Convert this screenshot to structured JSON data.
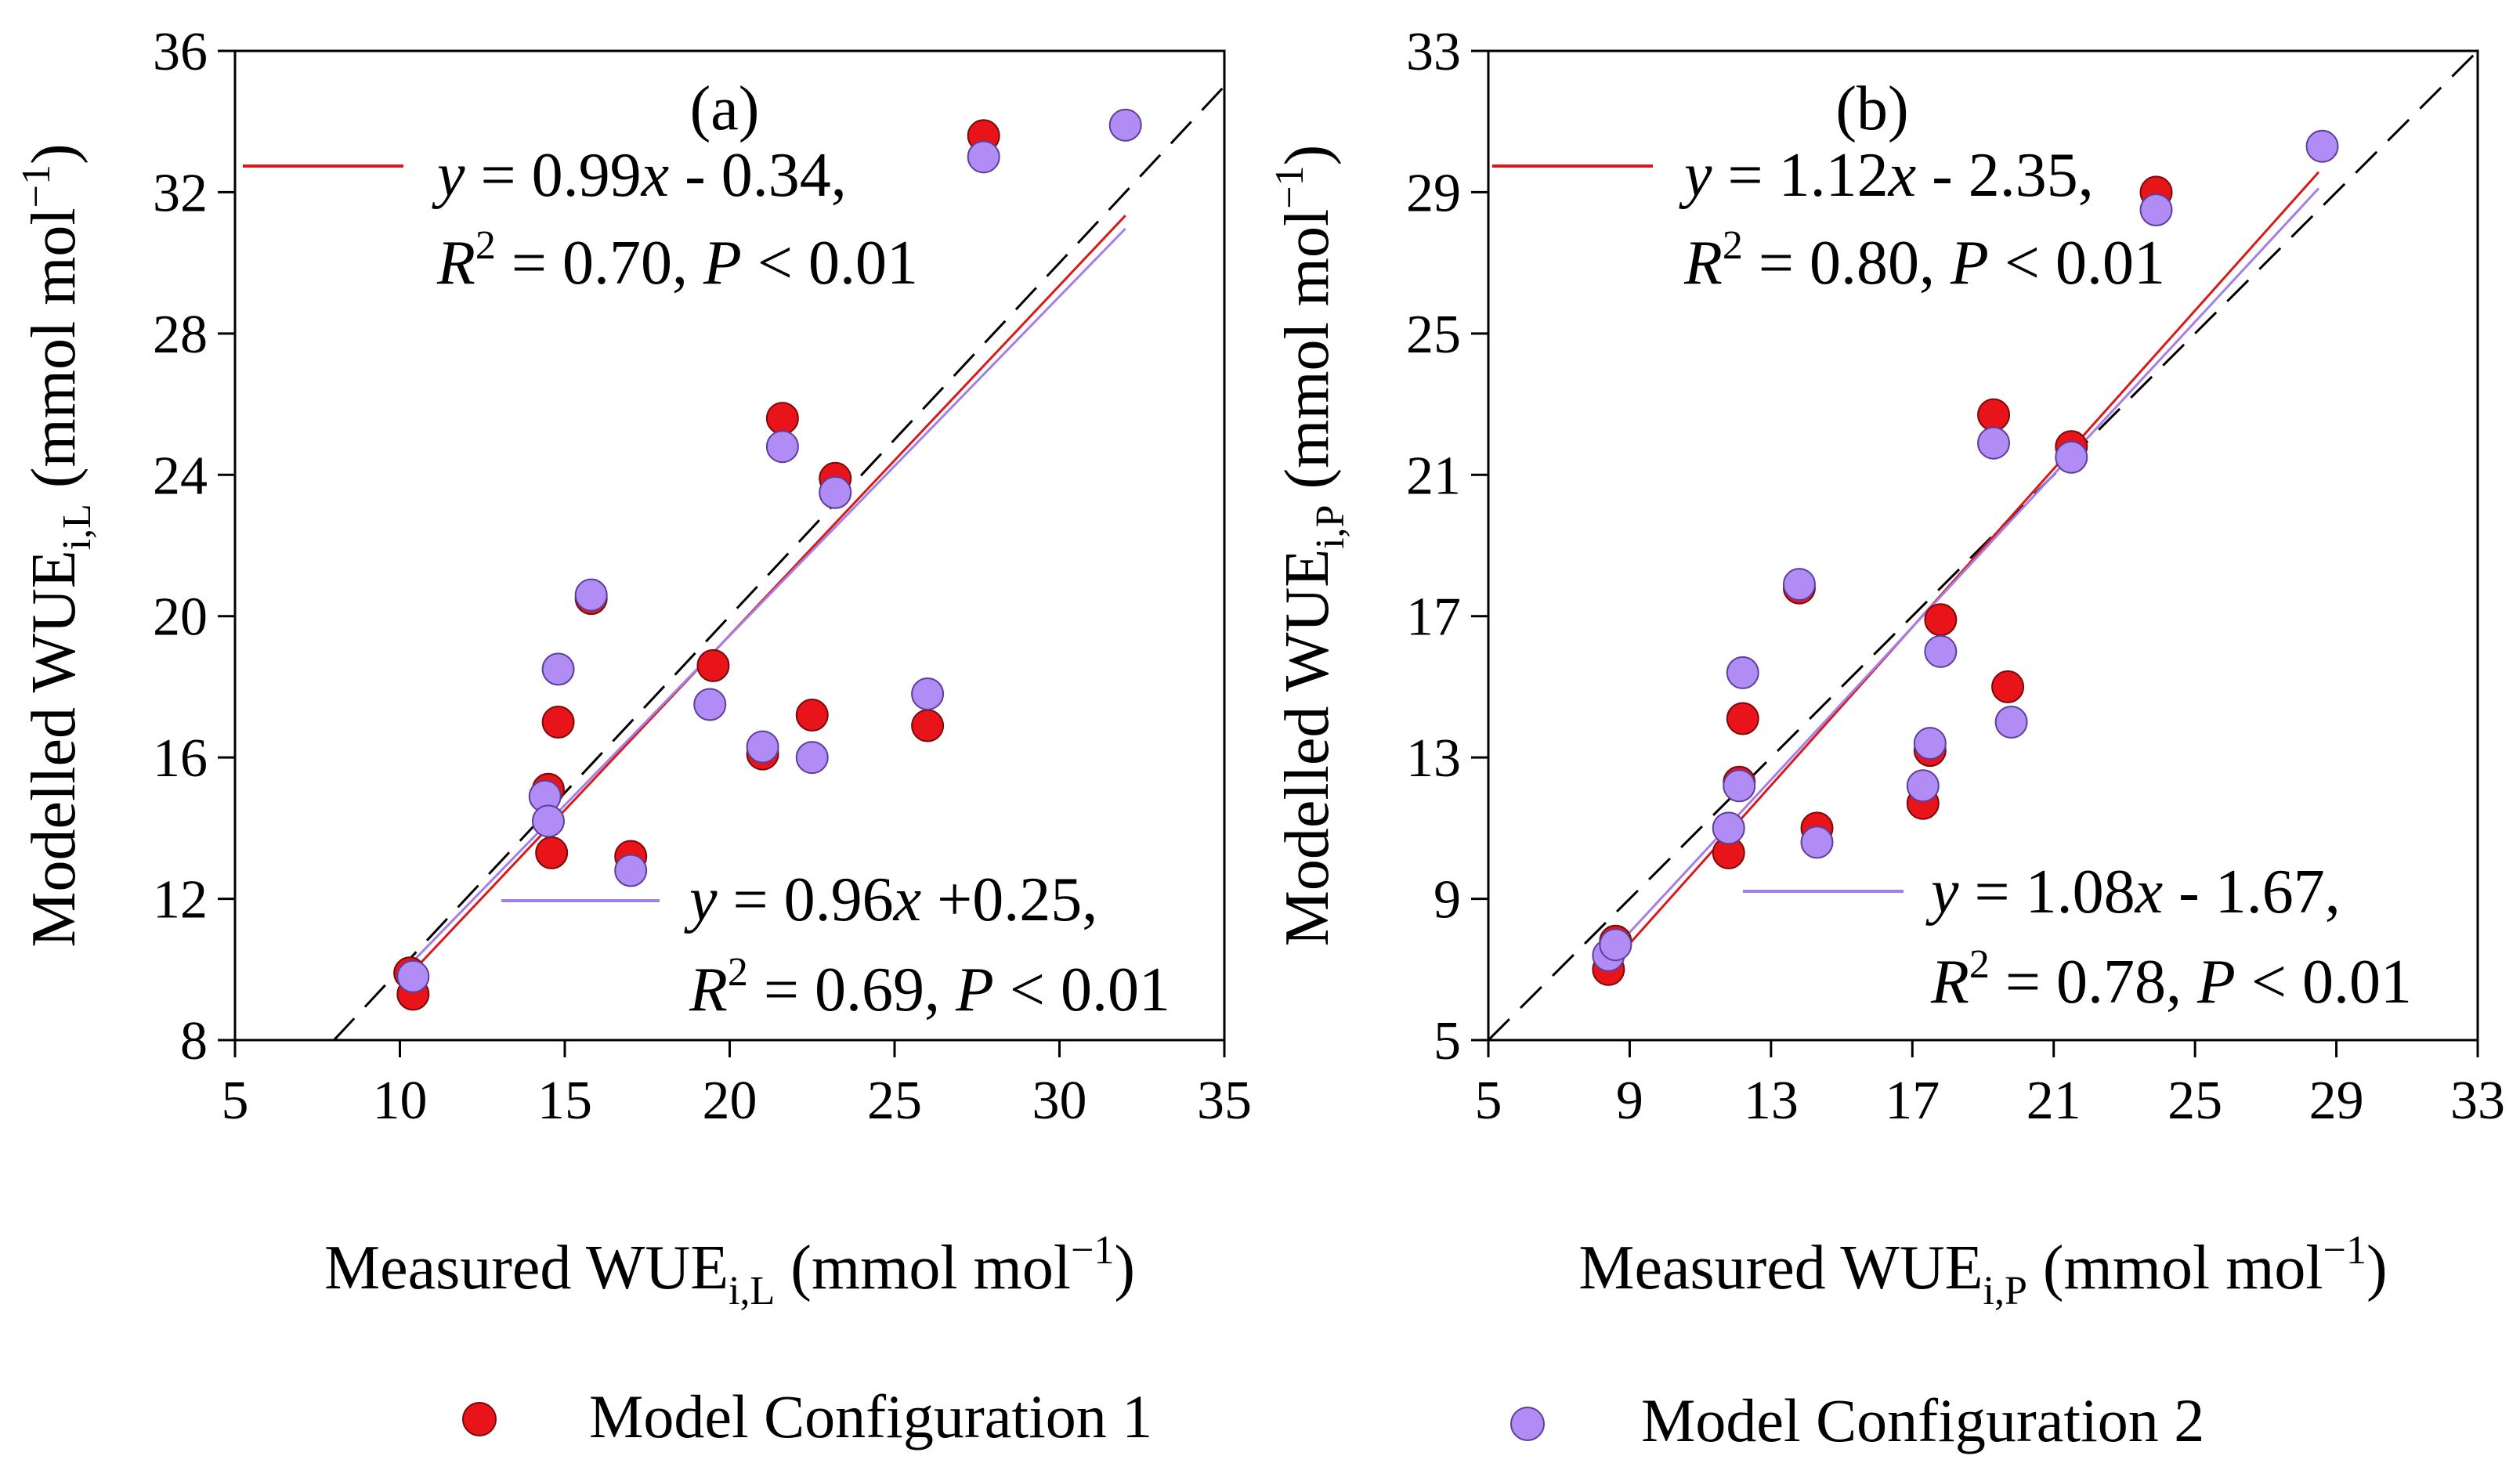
{
  "legend": {
    "series1": "Model Configuration 1",
    "series2": "Model Configuration 2",
    "series1_color": "#e8141a",
    "series2_color": "#b08cf4"
  },
  "chart_data": [
    {
      "type": "scatter",
      "panel_label": "(a)",
      "xlabel": "Measured WUE",
      "xlabel_sub": "i,L",
      "xlabel_unit": "(mmol  mol",
      "xlabel_sup": "−1",
      "ylabel": "Modelled WUE",
      "ylabel_sub": "i,L",
      "ylabel_unit": "(mmol  mol",
      "ylabel_sup": "−1",
      "xlim": [
        5,
        35
      ],
      "ylim": [
        8,
        36
      ],
      "xticks": [
        5,
        10,
        15,
        20,
        25,
        30,
        35
      ],
      "yticks": [
        8,
        12,
        16,
        20,
        24,
        28,
        32,
        36
      ],
      "one_to_one_line": true,
      "series": [
        {
          "name": "Model Configuration 1",
          "color": "#e8141a",
          "points": [
            [
              10.3,
              9.9
            ],
            [
              10.4,
              9.3
            ],
            [
              14.5,
              15.1
            ],
            [
              14.6,
              13.3
            ],
            [
              14.8,
              17.0
            ],
            [
              15.8,
              20.5
            ],
            [
              17.0,
              13.2
            ],
            [
              19.5,
              18.6
            ],
            [
              21.0,
              16.1
            ],
            [
              21.6,
              25.6
            ],
            [
              22.5,
              17.2
            ],
            [
              23.2,
              23.9
            ],
            [
              26.0,
              16.9
            ],
            [
              27.7,
              33.6
            ]
          ],
          "fit": {
            "slope": 0.99,
            "intercept": -0.34,
            "x_range": [
              10.3,
              32.0
            ]
          },
          "equation_text": "y = 0.99x - 0.34,",
          "stats_text": "R2 = 0.70, P < 0.01"
        },
        {
          "name": "Model Configuration 2",
          "color": "#b08cf4",
          "points": [
            [
              10.4,
              9.8
            ],
            [
              14.4,
              14.9
            ],
            [
              14.5,
              14.2
            ],
            [
              14.8,
              18.5
            ],
            [
              15.8,
              20.6
            ],
            [
              17.0,
              12.8
            ],
            [
              19.4,
              17.5
            ],
            [
              21.0,
              16.3
            ],
            [
              21.6,
              24.8
            ],
            [
              22.5,
              16.0
            ],
            [
              23.2,
              23.5
            ],
            [
              26.0,
              17.8
            ],
            [
              27.7,
              33.0
            ],
            [
              32.0,
              33.9
            ]
          ],
          "fit": {
            "slope": 0.96,
            "intercept": 0.25,
            "x_range": [
              10.3,
              32.0
            ]
          },
          "equation_text": "y = 0.96x +0.25,",
          "stats_text": "R2 = 0.69, P < 0.01"
        }
      ]
    },
    {
      "type": "scatter",
      "panel_label": "(b)",
      "xlabel": "Measured WUE",
      "xlabel_sub": "i,P",
      "xlabel_unit": "(mmol  mol",
      "xlabel_sup": "−1",
      "ylabel": "Modelled WUE",
      "ylabel_sub": "i,P",
      "ylabel_unit": "(mmol  mol",
      "ylabel_sup": "−1",
      "xlim": [
        5,
        33
      ],
      "ylim": [
        5,
        33
      ],
      "xticks": [
        5,
        9,
        13,
        17,
        21,
        25,
        29,
        33
      ],
      "yticks": [
        5,
        9,
        13,
        17,
        21,
        25,
        29,
        33
      ],
      "one_to_one_line": true,
      "series": [
        {
          "name": "Model Configuration 1",
          "color": "#e8141a",
          "points": [
            [
              8.4,
              7.0
            ],
            [
              8.6,
              7.8
            ],
            [
              11.8,
              10.3
            ],
            [
              12.1,
              12.3
            ],
            [
              12.2,
              14.1
            ],
            [
              13.8,
              17.8
            ],
            [
              14.3,
              11.0
            ],
            [
              17.3,
              11.7
            ],
            [
              17.5,
              13.2
            ],
            [
              17.8,
              16.9
            ],
            [
              19.3,
              22.7
            ],
            [
              19.7,
              15.0
            ],
            [
              21.5,
              21.8
            ],
            [
              23.9,
              29.0
            ]
          ],
          "fit": {
            "slope": 1.12,
            "intercept": -2.35,
            "x_range": [
              8.4,
              28.5
            ]
          },
          "equation_text": "y = 1.12x - 2.35,",
          "stats_text": "R2 = 0.80, P < 0.01"
        },
        {
          "name": "Model Configuration 2",
          "color": "#b08cf4",
          "points": [
            [
              8.4,
              7.4
            ],
            [
              8.6,
              7.7
            ],
            [
              11.8,
              11.0
            ],
            [
              12.1,
              12.2
            ],
            [
              12.2,
              15.4
            ],
            [
              13.8,
              17.9
            ],
            [
              14.3,
              10.6
            ],
            [
              17.3,
              12.2
            ],
            [
              17.5,
              13.4
            ],
            [
              17.8,
              16.0
            ],
            [
              19.3,
              21.9
            ],
            [
              19.8,
              14.0
            ],
            [
              21.5,
              21.5
            ],
            [
              23.9,
              28.5
            ],
            [
              28.6,
              30.3
            ]
          ],
          "fit": {
            "slope": 1.08,
            "intercept": -1.67,
            "x_range": [
              8.4,
              28.5
            ]
          },
          "equation_text": "y = 1.08x - 1.67,",
          "stats_text": "R2 = 0.78, P < 0.01"
        }
      ]
    }
  ]
}
